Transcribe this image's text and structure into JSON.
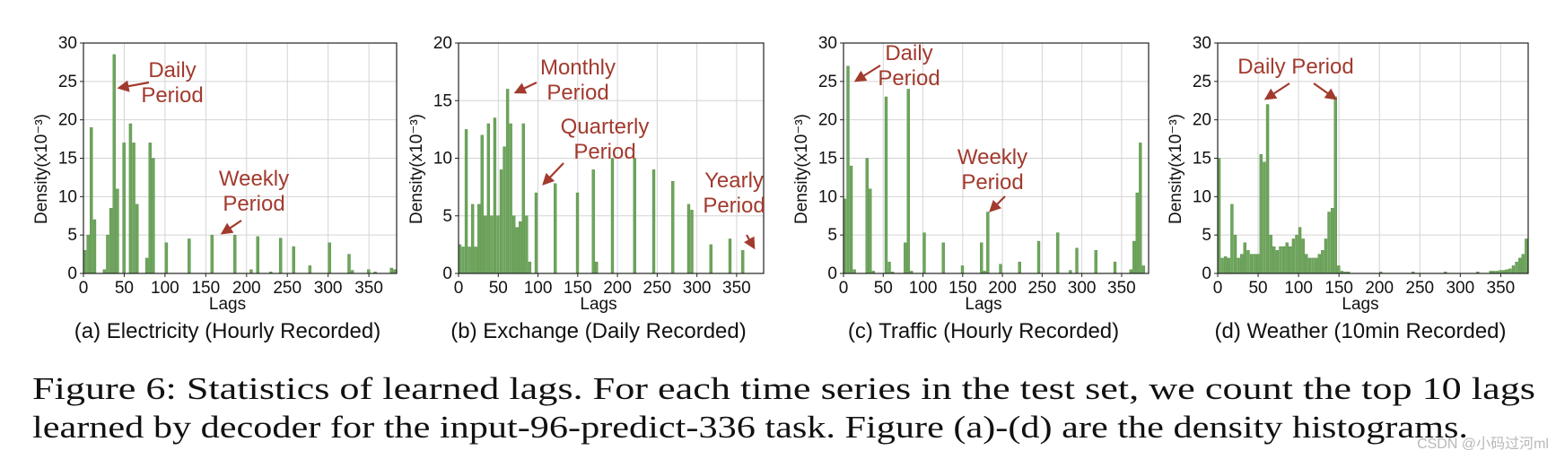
{
  "chart_data": [
    {
      "type": "bar",
      "title": "",
      "caption": "(a) Electricity (Hourly Recorded)",
      "xlabel": "Lags",
      "ylabel": "Density(x10⁻³)",
      "xlim": [
        0,
        384
      ],
      "ylim": [
        0,
        30
      ],
      "xticks": [
        0,
        50,
        100,
        150,
        200,
        250,
        300,
        350
      ],
      "yticks": [
        0,
        5,
        10,
        15,
        20,
        25,
        30
      ],
      "bin_width": 4,
      "x": [
        0,
        4,
        8,
        12,
        24,
        28,
        32,
        36,
        40,
        48,
        56,
        60,
        64,
        76,
        80,
        84,
        100,
        128,
        156,
        184,
        204,
        212,
        228,
        240,
        256,
        276,
        300,
        324,
        328,
        348,
        356,
        376,
        380
      ],
      "values": [
        3,
        5,
        19,
        7,
        0.5,
        5,
        8.5,
        28.5,
        11,
        17,
        19.5,
        17,
        9,
        2,
        17,
        15,
        4,
        4.5,
        5,
        5,
        0.5,
        4.8,
        0.2,
        4.6,
        3.5,
        1,
        4,
        2.5,
        0.4,
        0.5,
        0.2,
        0.7,
        0.5
      ],
      "annotations": [
        {
          "text": "Daily\nPeriod",
          "at": [
            36,
            25
          ]
        },
        {
          "text": "Weekly\nPeriod",
          "at": [
            168,
            5
          ]
        }
      ]
    },
    {
      "type": "bar",
      "title": "",
      "caption": "(b) Exchange (Daily Recorded)",
      "xlabel": "Lags",
      "ylabel": "Density(x10⁻³)",
      "xlim": [
        0,
        384
      ],
      "ylim": [
        0,
        20
      ],
      "xticks": [
        0,
        50,
        100,
        150,
        200,
        250,
        300,
        350
      ],
      "yticks": [
        0,
        5,
        10,
        15,
        20
      ],
      "bin_width": 4,
      "x": [
        0,
        4,
        8,
        12,
        16,
        20,
        24,
        28,
        32,
        36,
        40,
        44,
        48,
        52,
        56,
        60,
        64,
        68,
        72,
        76,
        80,
        84,
        88,
        96,
        120,
        148,
        168,
        172,
        192,
        220,
        244,
        268,
        288,
        292,
        316,
        340,
        356
      ],
      "values": [
        2.5,
        2.3,
        12.5,
        2.3,
        6,
        2.3,
        6,
        12,
        5,
        13,
        5,
        13.5,
        5,
        9,
        11,
        16,
        13,
        5,
        4,
        4.5,
        13,
        5,
        1,
        7,
        7.8,
        7,
        9,
        1,
        10,
        10,
        9,
        8,
        6,
        5.5,
        2.5,
        3,
        2
      ],
      "annotations": [
        {
          "text": "Monthly\nPeriod",
          "at": [
            60,
            16
          ]
        },
        {
          "text": "Quarterly\nPeriod",
          "at": [
            104,
            8
          ]
        },
        {
          "text": "Yearly\nPeriod",
          "at": [
            360,
            2
          ]
        }
      ]
    },
    {
      "type": "bar",
      "title": "",
      "caption": "(c) Traffic (Hourly Recorded)",
      "xlabel": "Lags",
      "ylabel": "Density(x10⁻³)",
      "xlim": [
        0,
        384
      ],
      "ylim": [
        0,
        30
      ],
      "xticks": [
        0,
        50,
        100,
        150,
        200,
        250,
        300,
        350
      ],
      "yticks": [
        0,
        5,
        10,
        15,
        20,
        25,
        30
      ],
      "bin_width": 4,
      "x": [
        0,
        4,
        8,
        12,
        28,
        32,
        36,
        52,
        56,
        60,
        76,
        80,
        84,
        100,
        124,
        148,
        172,
        176,
        180,
        196,
        220,
        244,
        268,
        284,
        292,
        316,
        340,
        360,
        364,
        368,
        372,
        376
      ],
      "values": [
        9.7,
        27,
        14,
        0.5,
        15,
        11,
        0.3,
        23,
        1.5,
        0.2,
        4,
        24,
        0.3,
        5.3,
        4,
        1,
        4,
        0.3,
        8,
        1.2,
        1.5,
        4.2,
        5.3,
        0.4,
        3.3,
        3,
        1.5,
        0.5,
        4.2,
        10.5,
        17,
        1
      ],
      "annotations": [
        {
          "text": "Daily\nPeriod",
          "at": [
            12,
            25
          ]
        },
        {
          "text": "Weekly\nPeriod",
          "at": [
            168,
            8
          ]
        }
      ]
    },
    {
      "type": "bar",
      "title": "",
      "caption": "(d) Weather (10min Recorded)",
      "xlabel": "Lags",
      "ylabel": "Density(x10⁻³)",
      "xlim": [
        0,
        384
      ],
      "ylim": [
        0,
        30
      ],
      "xticks": [
        0,
        50,
        100,
        150,
        200,
        250,
        300,
        350
      ],
      "yticks": [
        0,
        5,
        10,
        15,
        20,
        25,
        30
      ],
      "bin_width": 4,
      "x": [
        0,
        4,
        8,
        12,
        16,
        20,
        24,
        28,
        32,
        36,
        40,
        44,
        48,
        52,
        56,
        60,
        64,
        68,
        72,
        76,
        80,
        84,
        88,
        92,
        96,
        100,
        104,
        108,
        112,
        116,
        120,
        124,
        128,
        132,
        136,
        140,
        144,
        148,
        152,
        156,
        160,
        200,
        240,
        280,
        320,
        336,
        340,
        344,
        348,
        352,
        356,
        360,
        364,
        368,
        372,
        376,
        380
      ],
      "values": [
        15,
        2,
        2.2,
        2,
        9,
        5,
        2,
        2.5,
        4,
        3,
        2.5,
        2.5,
        2.5,
        15.5,
        14.5,
        22,
        5,
        3.5,
        3,
        3.5,
        3.5,
        4,
        3.5,
        4.5,
        5,
        6,
        4.5,
        2.5,
        2,
        2,
        2,
        2.5,
        3,
        4.5,
        8,
        8.5,
        23,
        1,
        0.3,
        0.2,
        0.2,
        0.2,
        0.2,
        0.2,
        0.2,
        0.3,
        0.3,
        0.3,
        0.4,
        0.4,
        0.5,
        0.6,
        1,
        1.5,
        2,
        2.5,
        4.5
      ],
      "annotations": [
        {
          "text": "Daily Period",
          "at": [
            72,
            22
          ]
        }
      ]
    }
  ],
  "figure_caption": {
    "line1": "Figure 6: Statistics of learned lags. For each time series in the test set, we count the top 10 lags",
    "line2": "learned by decoder for the input-96-predict-336 task. Figure (a)-(d) are the density histograms."
  },
  "watermark": "CSDN @小码过河ml",
  "colors": {
    "bar": "#6ea55c",
    "bar_edge": "#4f8a40",
    "annotation": "#a23a2e",
    "grid": "#d4d4d4",
    "axis": "#222222"
  }
}
